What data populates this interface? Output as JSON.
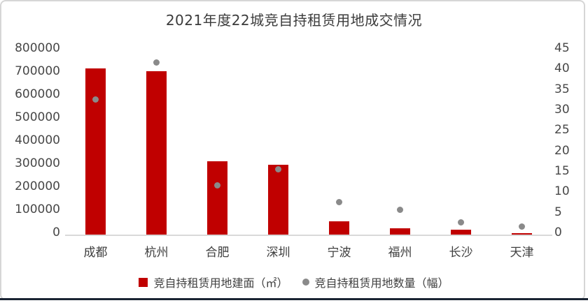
{
  "window": {
    "card_border_color": "#d6d6d6",
    "bottom_bar_color": "#1a2433"
  },
  "chart_data": {
    "type": "combo-bar-scatter",
    "title": "2021年度22城竞自持租赁用地成交情况",
    "categories": [
      "成都",
      "杭州",
      "合肥",
      "深圳",
      "宁波",
      "福州",
      "长沙",
      "天津"
    ],
    "series": [
      {
        "name": "竞自持租赁用地建面（㎡）",
        "type": "bar",
        "axis": "left",
        "color": "#c00000",
        "values": [
          720000,
          710000,
          318000,
          303000,
          58000,
          28000,
          21000,
          6000
        ]
      },
      {
        "name": "竞自持租赁用地数量（幅）",
        "type": "scatter",
        "axis": "right",
        "color": "#8a8a8a",
        "values": [
          33,
          42,
          12,
          16,
          8,
          6,
          3,
          2
        ]
      }
    ],
    "left_axis": {
      "min": 0,
      "max": 800000,
      "step": 100000,
      "ticks": [
        "800000",
        "700000",
        "600000",
        "500000",
        "400000",
        "300000",
        "200000",
        "100000",
        "0"
      ]
    },
    "right_axis": {
      "min": 0,
      "max": 45,
      "step": 5,
      "ticks": [
        "45",
        "40",
        "35",
        "30",
        "25",
        "20",
        "15",
        "10",
        "5",
        "0"
      ]
    },
    "legend": [
      {
        "label": "竞自持租赁用地建面（㎡）",
        "marker": "square",
        "color": "#c00000"
      },
      {
        "label": "竞自持租赁用地数量（幅）",
        "marker": "circle",
        "color": "#8a8a8a"
      }
    ],
    "grid": false,
    "legend_position": "bottom-center"
  }
}
